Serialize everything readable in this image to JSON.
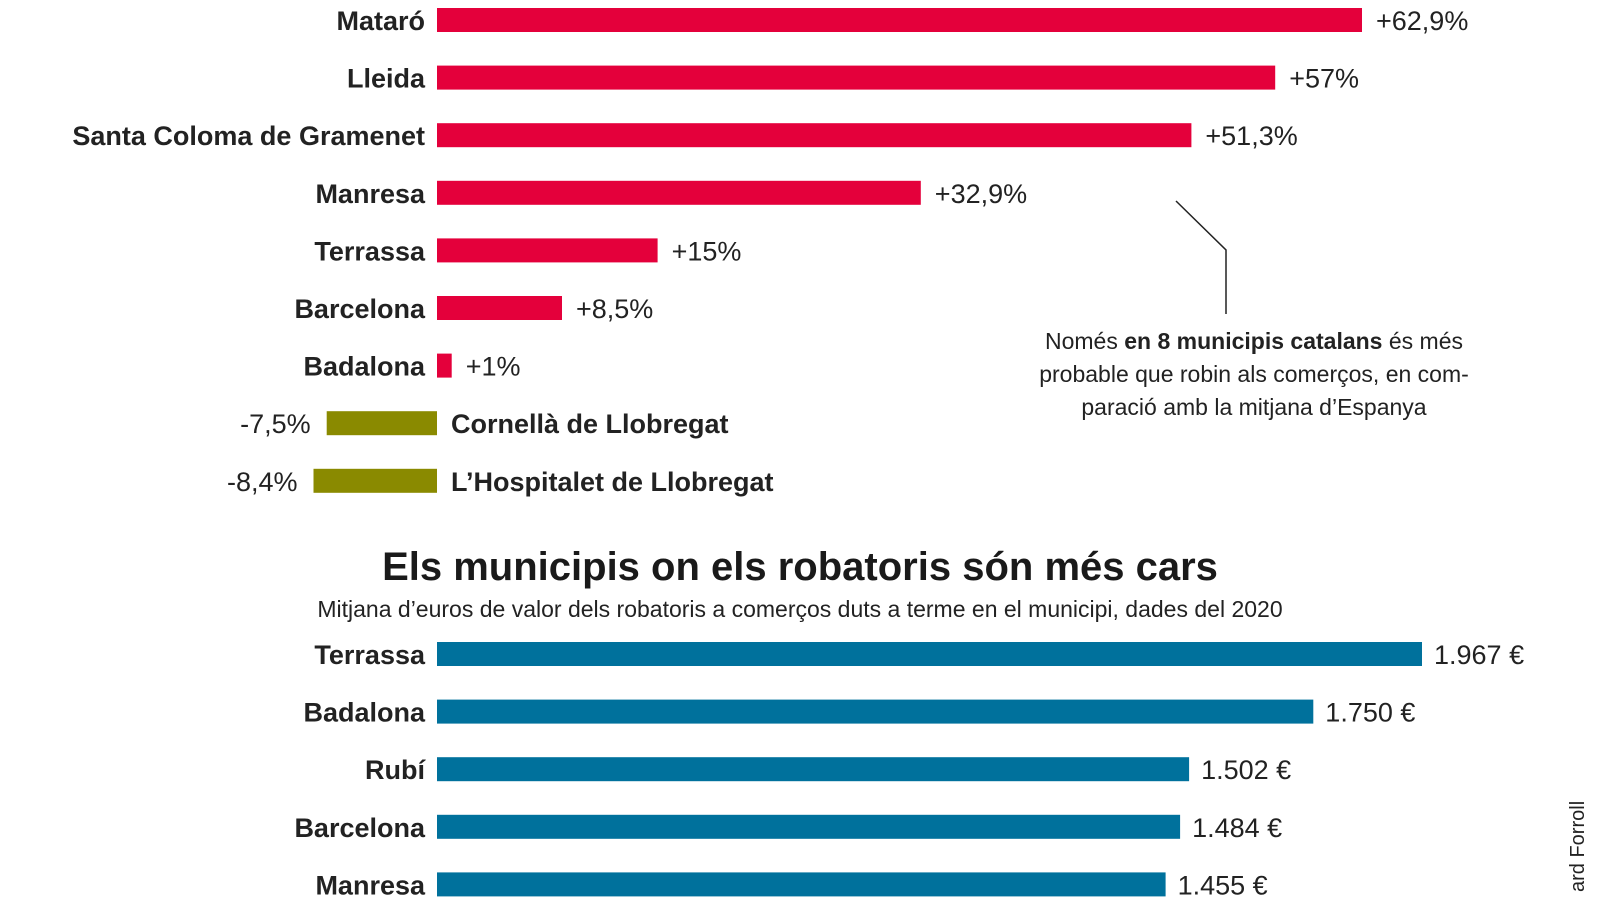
{
  "colors": {
    "increase": "#e4003b",
    "decrease": "#8a8a00",
    "cost": "#00719c",
    "text": "#222222"
  },
  "chart_data": [
    {
      "type": "bar",
      "orientation": "horizontal",
      "title": "",
      "subtitle": "",
      "unit": "%",
      "categories": [
        "Mataró",
        "Lleida",
        "Santa Coloma de Gramenet",
        "Manresa",
        "Terrassa",
        "Barcelona",
        "Badalona",
        "Cornellà de Llobregat",
        "L’Hospitalet de Llobregat"
      ],
      "values": [
        62.9,
        57,
        51.3,
        32.9,
        15,
        8.5,
        1,
        -7.5,
        -8.4
      ],
      "value_labels": [
        "+62,9%",
        "+57%",
        "+51,3%",
        "+32,9%",
        "+15%",
        "+8,5%",
        "+1%",
        "-7,5%",
        "-8,4%"
      ],
      "xlim": [
        -10,
        70
      ],
      "grid": false,
      "legend": "none"
    },
    {
      "type": "bar",
      "orientation": "horizontal",
      "title": "Els municipis on els robatoris són més cars",
      "subtitle": "Mitjana d’euros de valor dels robatoris a comerços duts a terme en el municipi, dades del 2020",
      "unit": "€",
      "categories": [
        "Terrassa",
        "Badalona",
        "Rubí",
        "Barcelona",
        "Manresa"
      ],
      "values": [
        1967,
        1750,
        1502,
        1484,
        1455
      ],
      "value_labels": [
        "1.967 €",
        "1.750 €",
        "1.502 €",
        "1.484 €",
        "1.455 €"
      ],
      "xlim": [
        0,
        2000
      ],
      "grid": false,
      "legend": "none"
    }
  ],
  "annotation": {
    "line1_pre": "Només ",
    "line1_bold": "en 8 municipis catalans",
    "line1_post": " és més",
    "line2": "probable que robin als comerços, en com-",
    "line3": "paració amb la mitjana d’Espanya"
  },
  "credit": "ard Forroll"
}
